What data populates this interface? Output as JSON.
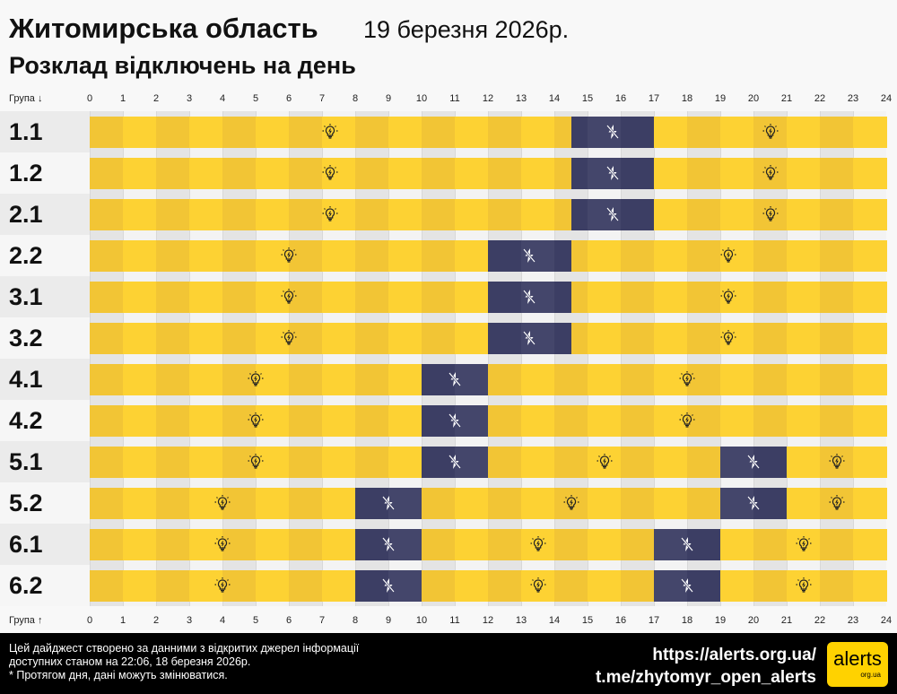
{
  "header": {
    "title": "Житомирська область",
    "date": "19 березня 2026р.",
    "subtitle": "Розклад відключень на день"
  },
  "axis": {
    "top_label": "Група ↓",
    "bottom_label": "Група ↑",
    "ticks": [
      "0",
      "1",
      "2",
      "3",
      "4",
      "5",
      "6",
      "7",
      "8",
      "9",
      "10",
      "11",
      "12",
      "13",
      "14",
      "15",
      "16",
      "17",
      "18",
      "19",
      "20",
      "21",
      "22",
      "23",
      "24"
    ]
  },
  "colors": {
    "on": "#fdd233",
    "on_alt": "#f2c535",
    "off": "#3c3e64",
    "off_alt": "#44466b"
  },
  "icons": {
    "on": "lightbulb-icon",
    "off": "power-off-icon"
  },
  "groups": [
    {
      "name": "1.1",
      "outages": [
        [
          14.5,
          17
        ]
      ]
    },
    {
      "name": "1.2",
      "outages": [
        [
          14.5,
          17
        ]
      ]
    },
    {
      "name": "2.1",
      "outages": [
        [
          14.5,
          17
        ]
      ]
    },
    {
      "name": "2.2",
      "outages": [
        [
          12,
          14.5
        ]
      ]
    },
    {
      "name": "3.1",
      "outages": [
        [
          12,
          14.5
        ]
      ]
    },
    {
      "name": "3.2",
      "outages": [
        [
          12,
          14.5
        ]
      ]
    },
    {
      "name": "4.1",
      "outages": [
        [
          10,
          12
        ]
      ]
    },
    {
      "name": "4.2",
      "outages": [
        [
          10,
          12
        ]
      ]
    },
    {
      "name": "5.1",
      "outages": [
        [
          10,
          12
        ],
        [
          19,
          21
        ]
      ]
    },
    {
      "name": "5.2",
      "outages": [
        [
          8,
          10
        ],
        [
          19,
          21
        ]
      ]
    },
    {
      "name": "6.1",
      "outages": [
        [
          8,
          10
        ],
        [
          17,
          19
        ]
      ]
    },
    {
      "name": "6.2",
      "outages": [
        [
          8,
          10
        ],
        [
          17,
          19
        ]
      ]
    }
  ],
  "footer": {
    "note1": "Цей дайджест створено за данними з відкритих джерел інформації",
    "note2": "доступних станом на 22:06, 18 березня 2026р.",
    "note3": "* Протягом дня, дані можуть змінюватися.",
    "link1": "https://alerts.org.ua/",
    "link2": "t.me/zhytomyr_open_alerts",
    "logo": "alerts org.ua"
  }
}
